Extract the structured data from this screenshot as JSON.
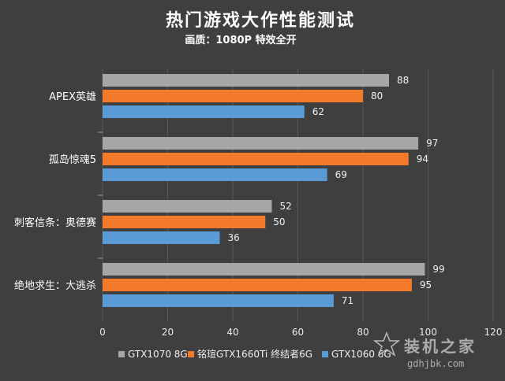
{
  "chart_data": {
    "type": "bar",
    "orientation": "horizontal",
    "title": "热门游戏大作性能测试",
    "subtitle": "画质：1080P 特效全开",
    "categories": [
      "APEX英雄",
      "孤岛惊魂5",
      "刺客信条：奥德赛",
      "绝地求生：大逃杀"
    ],
    "series": [
      {
        "name": "GTX1070 8G",
        "color": "#a6a6a6",
        "values": [
          88,
          97,
          52,
          99
        ]
      },
      {
        "name": "铭瑄GTX1660Ti 终结者6G",
        "color": "#f47a2a",
        "values": [
          80,
          94,
          50,
          95
        ]
      },
      {
        "name": "GTX1060 6G",
        "color": "#5b9bd5",
        "values": [
          62,
          69,
          36,
          71
        ]
      }
    ],
    "xlim": [
      0,
      120
    ],
    "xticks": [
      0,
      20,
      40,
      60,
      80,
      100,
      120
    ],
    "xlabel": "",
    "ylabel": "",
    "grid": true,
    "legend_position": "bottom"
  },
  "watermark": {
    "text": "装机之家",
    "url": "gdhjbk.com"
  }
}
